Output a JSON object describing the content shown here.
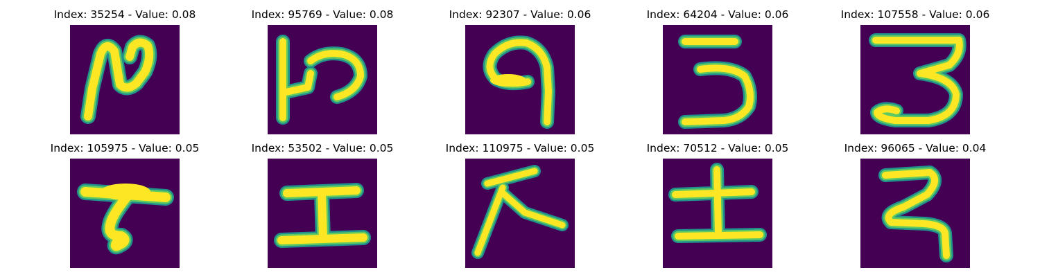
{
  "colors": {
    "background": "#440154",
    "stroke_core": "#fde725",
    "stroke_mid": "#5ec962",
    "stroke_edge": "#21918c"
  },
  "panels": [
    {
      "title": "Index: 35254 - Value: 0.08"
    },
    {
      "title": "Index: 95769 - Value: 0.08"
    },
    {
      "title": "Index: 92307 - Value: 0.06"
    },
    {
      "title": "Index: 64204 - Value: 0.06"
    },
    {
      "title": "Index: 107558 - Value: 0.06"
    },
    {
      "title": "Index: 105975 - Value: 0.05"
    },
    {
      "title": "Index: 53502 - Value: 0.05"
    },
    {
      "title": "Index: 110975 - Value: 0.05"
    },
    {
      "title": "Index: 70512 - Value: 0.05"
    },
    {
      "title": "Index: 96065 - Value: 0.04"
    }
  ]
}
